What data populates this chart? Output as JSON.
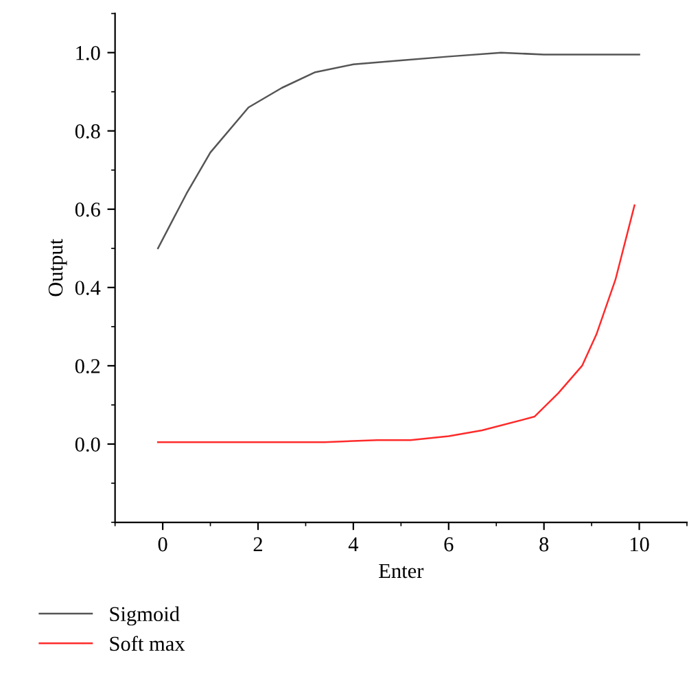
{
  "chart_data": {
    "type": "line",
    "xlabel": "Enter",
    "ylabel": "Output",
    "xlim": [
      -1,
      11
    ],
    "ylim": [
      -0.2,
      1.1
    ],
    "xticks": [
      0,
      2,
      4,
      6,
      8,
      10
    ],
    "yticks": [
      {
        "value": 0,
        "label": "0.0"
      },
      {
        "value": 0.2,
        "label": "0.2"
      },
      {
        "value": 0.4,
        "label": "0.4"
      },
      {
        "value": 0.6,
        "label": "0.6"
      },
      {
        "value": 0.8,
        "label": "0.8"
      },
      {
        "value": 1,
        "label": "1.0"
      }
    ],
    "grid": false,
    "legend": "bottom",
    "marker": "none",
    "line_style": "solid",
    "series": [
      {
        "name": "Sigmoid",
        "color": "#555555",
        "x": [
          -0.1,
          0.5,
          1,
          1.8,
          2.5,
          3.2,
          4,
          5,
          6,
          7.1,
          8,
          10
        ],
        "values": [
          0.5,
          0.64,
          0.745,
          0.86,
          0.91,
          0.95,
          0.97,
          0.98,
          0.99,
          1.0,
          0.995,
          0.995
        ]
      },
      {
        "name": "Soft max",
        "color": "#ff2a2a",
        "x": [
          -0.1,
          3.4,
          4.5,
          5.2,
          6,
          6.7,
          7.8,
          8.3,
          8.8,
          9.1,
          9.5,
          9.9
        ],
        "values": [
          0.005,
          0.005,
          0.01,
          0.01,
          0.02,
          0.035,
          0.07,
          0.13,
          0.2,
          0.28,
          0.42,
          0.61
        ]
      }
    ]
  }
}
